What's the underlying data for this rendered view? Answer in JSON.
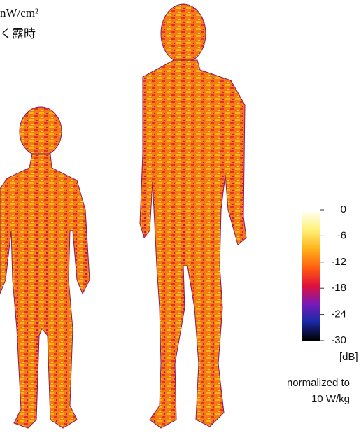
{
  "header": {
    "line1": "nW/cm²",
    "line2": "く露時"
  },
  "colorbar": {
    "range": [
      -30,
      0
    ],
    "ticks": [
      0,
      -6,
      -12,
      -18,
      -24,
      -30
    ],
    "unit": "[dB]"
  },
  "note": {
    "line1": "normalized to",
    "line2": "10 W/kg"
  }
}
